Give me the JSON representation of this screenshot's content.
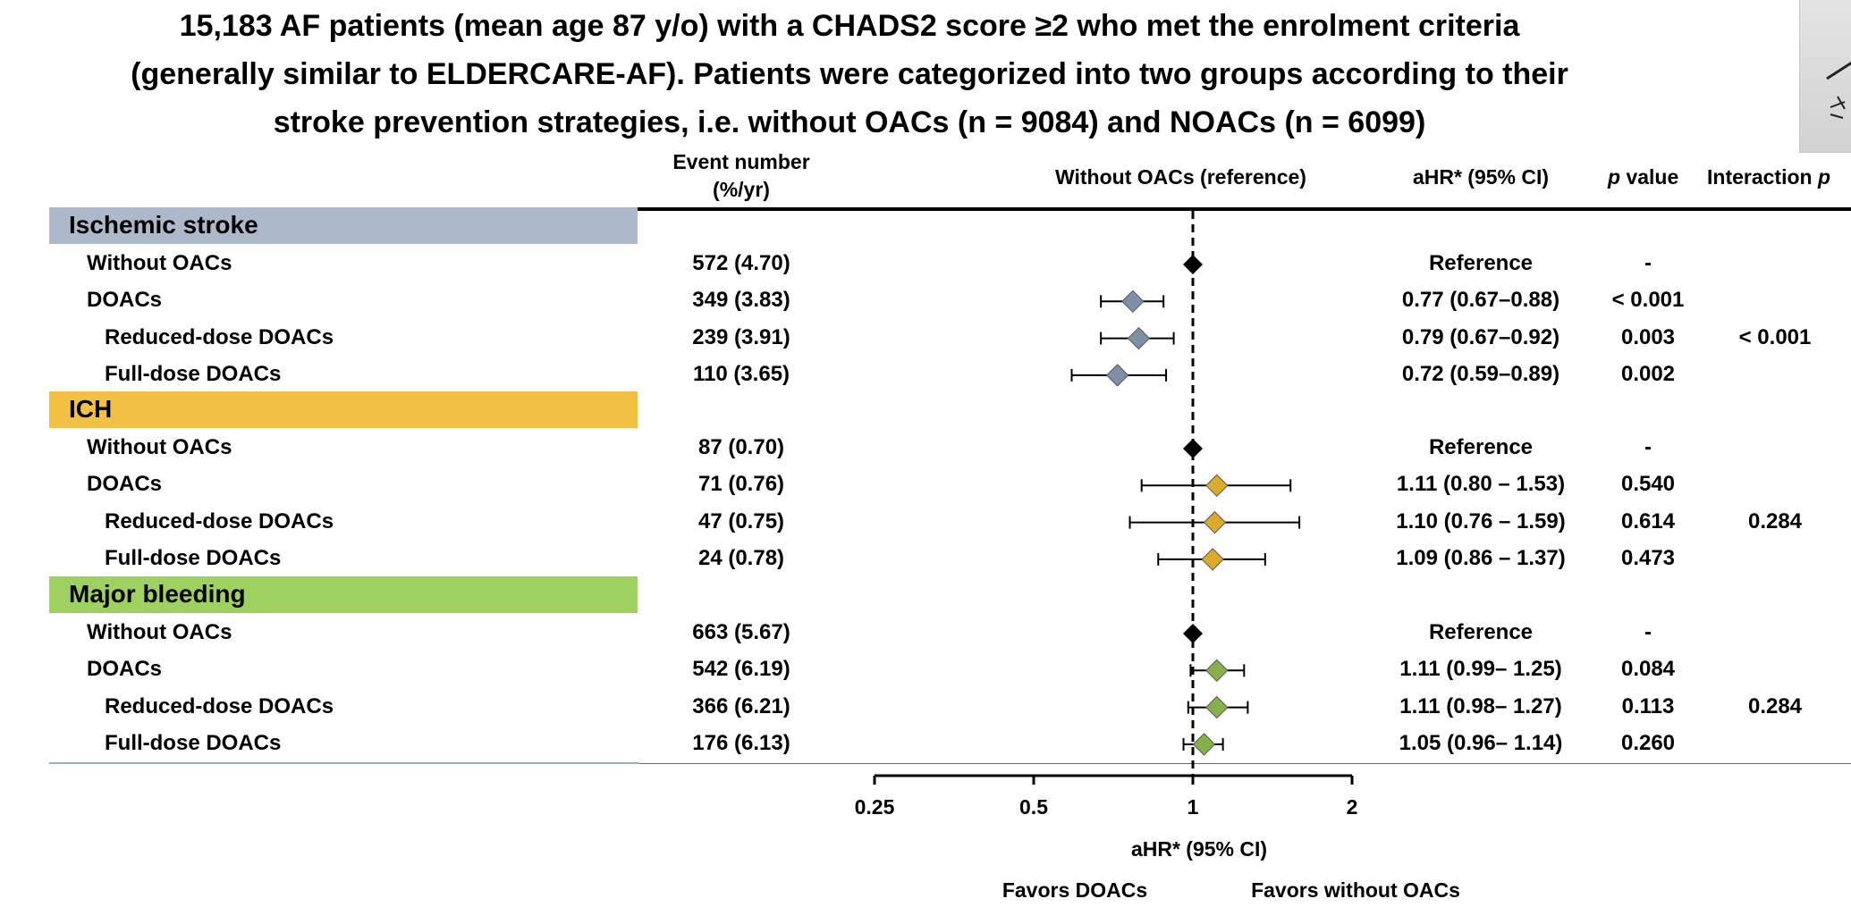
{
  "title_lines": [
    "15,183 AF patients (mean age 87 y/o) with a CHADS2 score ≥2 who met the enrolment criteria",
    "(generally similar to ELDERCARE-AF). Patients were categorized into two groups according to their",
    "stroke prevention strategies, i.e. without OACs (n = 9084) and NOACs (n = 6099)"
  ],
  "headers": {
    "event_line1": "Event number",
    "event_line2": "(%/yr)",
    "reference": "Without OACs (reference)",
    "ahr": "aHR* (95% CI)",
    "p_italic": "p",
    "p_rest": " value",
    "interaction_text": "Interaction ",
    "interaction_italic": "p"
  },
  "colors": {
    "ischemic": "#adb9ca",
    "ich": "#f2c144",
    "bleeding": "#9ed15f",
    "ischemic_marker": "#7e8fa8",
    "ich_marker": "#dcaa2c",
    "bleeding_marker": "#86b04a"
  },
  "groups": [
    {
      "label": "Ischemic stroke",
      "color": "#adb9ca",
      "marker": "#7e8fa8",
      "interaction_p": "< 0.001",
      "rows": [
        {
          "label": "Without OACs",
          "sub": false,
          "event": "572 (4.70)",
          "hr_text": "Reference",
          "p": "-",
          "hr": 1.0,
          "lo": null,
          "hi": null,
          "ref": true
        },
        {
          "label": "DOACs",
          "sub": false,
          "event": "349 (3.83)",
          "hr_text": "0.77  (0.67–0.88)",
          "p": "< 0.001",
          "hr": 0.77,
          "lo": 0.67,
          "hi": 0.88,
          "ref": false
        },
        {
          "label": "Reduced-dose DOACs",
          "sub": true,
          "event": "239 (3.91)",
          "hr_text": "0.79  (0.67–0.92)",
          "p": "0.003",
          "hr": 0.79,
          "lo": 0.67,
          "hi": 0.92,
          "ref": false
        },
        {
          "label": "Full-dose DOACs",
          "sub": true,
          "event": "110 (3.65)",
          "hr_text": "0.72  (0.59–0.89)",
          "p": "0.002",
          "hr": 0.72,
          "lo": 0.59,
          "hi": 0.89,
          "ref": false
        }
      ]
    },
    {
      "label": "ICH",
      "color": "#f2c144",
      "marker": "#dcaa2c",
      "interaction_p": "0.284",
      "rows": [
        {
          "label": "Without OACs",
          "sub": false,
          "event": "87 (0.70)",
          "hr_text": "Reference",
          "p": "-",
          "hr": 1.0,
          "lo": null,
          "hi": null,
          "ref": true
        },
        {
          "label": "DOACs",
          "sub": false,
          "event": "71 (0.76)",
          "hr_text": "1.11  (0.80 – 1.53)",
          "p": "0.540",
          "hr": 1.11,
          "lo": 0.8,
          "hi": 1.53,
          "ref": false
        },
        {
          "label": "Reduced-dose DOACs",
          "sub": true,
          "event": "47 (0.75)",
          "hr_text": "1.10  (0.76 – 1.59)",
          "p": "0.614",
          "hr": 1.1,
          "lo": 0.76,
          "hi": 1.59,
          "ref": false
        },
        {
          "label": "Full-dose DOACs",
          "sub": true,
          "event": "24 (0.78)",
          "hr_text": "1.09  (0.86 – 1.37)",
          "p": "0.473",
          "hr": 1.09,
          "lo": 0.86,
          "hi": 1.37,
          "ref": false
        }
      ]
    },
    {
      "label": "Major bleeding",
      "color": "#9ed15f",
      "marker": "#86b04a",
      "interaction_p": "0.284",
      "rows": [
        {
          "label": "Without OACs",
          "sub": false,
          "event": "663 (5.67)",
          "hr_text": "Reference",
          "p": "-",
          "hr": 1.0,
          "lo": null,
          "hi": null,
          "ref": true
        },
        {
          "label": "DOACs",
          "sub": false,
          "event": "542 (6.19)",
          "hr_text": "1.11  (0.99– 1.25)",
          "p": "0.084",
          "hr": 1.11,
          "lo": 0.99,
          "hi": 1.25,
          "ref": false
        },
        {
          "label": "Reduced-dose DOACs",
          "sub": true,
          "event": "366 (6.21)",
          "hr_text": "1.11  (0.98– 1.27)",
          "p": "0.113",
          "hr": 1.11,
          "lo": 0.98,
          "hi": 1.27,
          "ref": false
        },
        {
          "label": "Full-dose DOACs",
          "sub": true,
          "event": "176 (6.13)",
          "hr_text": "1.05  (0.96– 1.14)",
          "p": "0.260",
          "hr": 1.05,
          "lo": 0.96,
          "hi": 1.14,
          "ref": false
        }
      ]
    }
  ],
  "axis": {
    "title": "aHR* (95% CI)",
    "left_label": "Favors DOACs",
    "right_label": "Favors without OACs"
  },
  "chart_data": {
    "type": "forest",
    "scale": "log2",
    "xlim": [
      0.25,
      2
    ],
    "ticks": [
      0.25,
      0.5,
      1,
      2
    ],
    "tick_labels": [
      "0.25",
      "0.5",
      "1",
      "2"
    ],
    "reference_line": 1,
    "xlabel": "aHR* (95% CI)",
    "series": [
      {
        "name": "Ischemic stroke",
        "rows": [
          "Without OACs",
          "DOACs",
          "Reduced-dose DOACs",
          "Full-dose DOACs"
        ],
        "hr": [
          1.0,
          0.77,
          0.79,
          0.72
        ],
        "lo": [
          null,
          0.67,
          0.67,
          0.59
        ],
        "hi": [
          null,
          0.88,
          0.92,
          0.89
        ]
      },
      {
        "name": "ICH",
        "rows": [
          "Without OACs",
          "DOACs",
          "Reduced-dose DOACs",
          "Full-dose DOACs"
        ],
        "hr": [
          1.0,
          1.11,
          1.1,
          1.09
        ],
        "lo": [
          null,
          0.8,
          0.76,
          0.86
        ],
        "hi": [
          null,
          1.53,
          1.59,
          1.37
        ]
      },
      {
        "name": "Major bleeding",
        "rows": [
          "Without OACs",
          "DOACs",
          "Reduced-dose DOACs",
          "Full-dose DOACs"
        ],
        "hr": [
          1.0,
          1.11,
          1.11,
          1.05
        ],
        "lo": [
          null,
          0.99,
          0.98,
          0.96
        ],
        "hi": [
          null,
          1.25,
          1.27,
          1.14
        ]
      }
    ]
  }
}
